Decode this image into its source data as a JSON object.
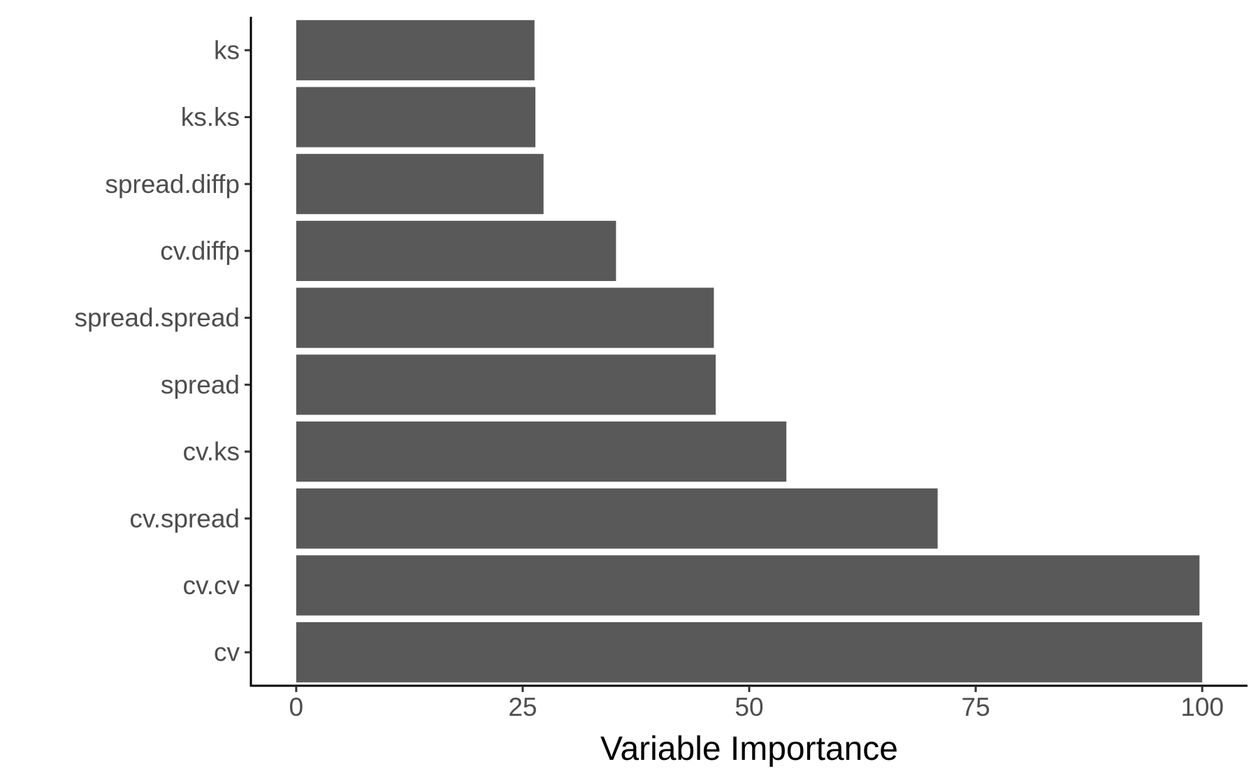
{
  "chart_data": {
    "type": "bar",
    "orientation": "horizontal",
    "categories": [
      "ks",
      "ks.ks",
      "spread.diffp",
      "cv.diffp",
      "spread.spread",
      "spread",
      "cv.ks",
      "cv.spread",
      "cv.cv",
      "cv"
    ],
    "values": [
      26.3,
      26.4,
      27.3,
      35.3,
      46.1,
      46.3,
      54.1,
      70.8,
      99.7,
      100
    ],
    "title": "",
    "xlabel": "Variable Importance",
    "ylabel": "",
    "xlim": [
      -5,
      105
    ],
    "xticks": [
      0,
      25,
      50,
      75,
      100
    ],
    "xtick_labels": [
      "0",
      "25",
      "50",
      "75",
      "100"
    ],
    "grid": false,
    "legend": "none",
    "bar_color": "#595959",
    "axis_color": "#000000",
    "tick_label_color": "#4d4d4d"
  }
}
